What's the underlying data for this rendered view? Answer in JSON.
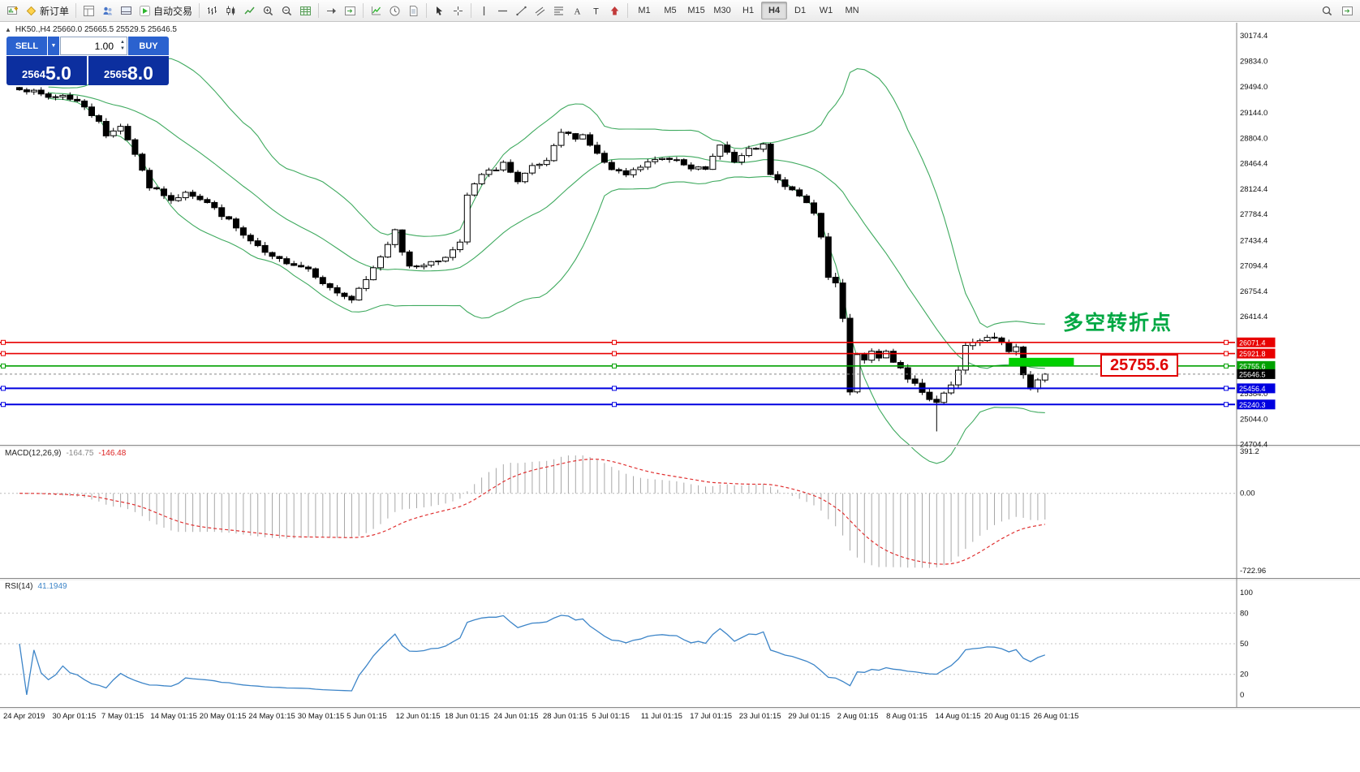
{
  "toolbar": {
    "items": [
      {
        "name": "new-chart-button",
        "icon": "new-chart"
      },
      {
        "name": "new-order-button",
        "icon": "new-order",
        "label": "新订单"
      },
      {
        "sep": true
      },
      {
        "name": "data-window-button",
        "icon": "data-window"
      },
      {
        "name": "navigator-button",
        "icon": "profiles"
      },
      {
        "name": "terminal-button",
        "icon": "terminal"
      },
      {
        "name": "autotrading-button",
        "icon": "autotrade-play",
        "label": "自动交易"
      },
      {
        "sep": true
      },
      {
        "name": "bar-chart-button",
        "icon": "bar-chart-type"
      },
      {
        "name": "candlestick-chart-button",
        "icon": "candle-chart-type"
      },
      {
        "name": "line-chart-button",
        "icon": "line-chart-type"
      },
      {
        "name": "zoom-in-button",
        "icon": "zoom-in"
      },
      {
        "name": "zoom-out-button",
        "icon": "zoom-out"
      },
      {
        "name": "tile-windows-button",
        "icon": "grid"
      },
      {
        "sep": true
      },
      {
        "name": "auto-scroll-button",
        "icon": "auto-scroll"
      },
      {
        "name": "chart-shift-button",
        "icon": "chart-shift"
      },
      {
        "sep": true
      },
      {
        "name": "indicators-button",
        "icon": "indicators"
      },
      {
        "name": "periods-button",
        "icon": "clock"
      },
      {
        "name": "templates-button",
        "icon": "templates"
      },
      {
        "sep": true
      },
      {
        "name": "cursor-button",
        "icon": "cursor-arrow"
      },
      {
        "name": "crosshair-button",
        "icon": "crosshair"
      },
      {
        "sep": true
      },
      {
        "name": "vertical-line-button",
        "icon": "vline"
      },
      {
        "name": "horizontal-line-button",
        "icon": "hline"
      },
      {
        "name": "trendline-button",
        "icon": "trendline"
      },
      {
        "name": "equidistant-channel-button",
        "icon": "channel"
      },
      {
        "name": "fibonacci-button",
        "icon": "fibonacci"
      },
      {
        "name": "text-button",
        "icon": "text"
      },
      {
        "name": "text-label-button",
        "icon": "label-flag"
      },
      {
        "name": "arrows-button",
        "icon": "arrows"
      },
      {
        "sep": true
      }
    ],
    "timeframes": [
      {
        "label": "M1"
      },
      {
        "label": "M5"
      },
      {
        "label": "M15"
      },
      {
        "label": "M30"
      },
      {
        "label": "H1"
      },
      {
        "label": "H4",
        "active": true
      },
      {
        "label": "D1"
      },
      {
        "label": "W1"
      },
      {
        "label": "MN"
      }
    ],
    "right_items": [
      {
        "name": "search-button",
        "icon": "search"
      },
      {
        "name": "quick-navigation-button",
        "icon": "chart-shift"
      }
    ]
  },
  "chart_header": {
    "collapse_icon": "▲",
    "text": "HK50.,H4  25660.0 25665.5 25529.5 25646.5"
  },
  "trade_panel": {
    "sell_label": "SELL",
    "buy_label": "BUY",
    "volume": "1.00",
    "sell_price": "25645.0",
    "sell_price_small": "2564",
    "sell_price_big": "5.0",
    "buy_price": "25658.0",
    "buy_price_small": "2565",
    "buy_price_big": "8.0"
  },
  "annotations": {
    "turning_point_text": "多空转折点",
    "price_callout": "25755.6"
  },
  "y_axis_labels": [
    "30174.4",
    "29834.0",
    "29494.0",
    "29144.0",
    "28804.0",
    "28464.4",
    "28124.4",
    "27784.4",
    "27434.4",
    "27094.4",
    "26754.4",
    "26414.4",
    "25384.0",
    "25044.0",
    "24704.4"
  ],
  "x_axis_labels": [
    "24 Apr 2019",
    "30 Apr 01:15",
    "7 May 01:15",
    "14 May 01:15",
    "20 May 01:15",
    "24 May 01:15",
    "30 May 01:15",
    "5 Jun 01:15",
    "12 Jun 01:15",
    "18 Jun 01:15",
    "24 Jun 01:15",
    "28 Jun 01:15",
    "5 Jul 01:15",
    "11 Jul 01:15",
    "17 Jul 01:15",
    "23 Jul 01:15",
    "29 Jul 01:15",
    "2 Aug 01:15",
    "8 Aug 01:15",
    "14 Aug 01:15",
    "20 Aug 01:15",
    "26 Aug 01:15"
  ],
  "levels": [
    {
      "name": "resistance-line-1",
      "price": 26071.4,
      "label": "26071.4",
      "color": "#e80000",
      "thickness": 1.6
    },
    {
      "name": "resistance-line-2",
      "price": 25921.8,
      "label": "25921.8",
      "color": "#e80000",
      "thickness": 1.6
    },
    {
      "name": "pivot-line",
      "price": 25755.6,
      "label": "25755.6",
      "color": "#00a000",
      "thickness": 1.6
    },
    {
      "name": "support-line-1",
      "price": 25456.4,
      "label": "25456.4",
      "color": "#0000e0",
      "thickness": 2
    },
    {
      "name": "support-line-2",
      "price": 25240.3,
      "label": "25240.3",
      "color": "#0000e0",
      "thickness": 2
    }
  ],
  "bid": {
    "price": 25646.5,
    "label": "25646.5",
    "color": "#000000"
  },
  "highlight": {
    "price": 25755.6,
    "from_index": 137,
    "to_index": 146,
    "color": "#00d000",
    "height": 10
  },
  "macd_panel": {
    "title": "MACD(12,26,9)",
    "main_value": "-164.75",
    "signal_value": "-146.48",
    "axis_labels": [
      "391.2",
      "0.00",
      "-722.96"
    ],
    "histogram_color": "#a8a8a8",
    "signal_color": "#e03030"
  },
  "rsi_panel": {
    "title": "RSI(14)",
    "value": "41.1949",
    "axis_labels": [
      "100",
      "80",
      "50",
      "20",
      "0"
    ],
    "levels": [
      80,
      50,
      20
    ],
    "line_color": "#3d85c8"
  },
  "chart_data": {
    "type": "candlestick",
    "symbol": "HK50",
    "timeframe": "H4",
    "title": "HK50.,H4",
    "ohlc_current": {
      "open": 25660.0,
      "high": 25665.5,
      "low": 25529.5,
      "close": 25646.5
    },
    "visible_price_range": [
      24704.4,
      30174.4
    ],
    "date_range": [
      "24 Apr 2019",
      "26 Aug 2019"
    ],
    "candle_count": 143,
    "close_anchors": [
      [
        0,
        29480
      ],
      [
        2,
        29420
      ],
      [
        4,
        29350
      ],
      [
        6,
        29380
      ],
      [
        8,
        29300
      ],
      [
        10,
        29120
      ],
      [
        11,
        29050
      ],
      [
        12,
        28820
      ],
      [
        13,
        28900
      ],
      [
        14,
        28980
      ],
      [
        16,
        28600
      ],
      [
        18,
        28150
      ],
      [
        20,
        28050
      ],
      [
        21,
        27950
      ],
      [
        23,
        28100
      ],
      [
        26,
        27940
      ],
      [
        29,
        27700
      ],
      [
        31,
        27500
      ],
      [
        33,
        27340
      ],
      [
        35,
        27200
      ],
      [
        37,
        27150
      ],
      [
        40,
        27060
      ],
      [
        43,
        26790
      ],
      [
        46,
        26640
      ],
      [
        48,
        26900
      ],
      [
        49,
        27060
      ],
      [
        51,
        27390
      ],
      [
        52,
        27600
      ],
      [
        53,
        27300
      ],
      [
        54,
        27070
      ],
      [
        56,
        27120
      ],
      [
        58,
        27170
      ],
      [
        60,
        27300
      ],
      [
        61,
        27390
      ],
      [
        62,
        28040
      ],
      [
        64,
        28310
      ],
      [
        66,
        28400
      ],
      [
        67,
        28480
      ],
      [
        69,
        28200
      ],
      [
        71,
        28420
      ],
      [
        73,
        28480
      ],
      [
        75,
        28880
      ],
      [
        77,
        28820
      ],
      [
        78,
        28850
      ],
      [
        80,
        28590
      ],
      [
        82,
        28370
      ],
      [
        84,
        28310
      ],
      [
        86,
        28420
      ],
      [
        87,
        28480
      ],
      [
        89,
        28530
      ],
      [
        91,
        28530
      ],
      [
        93,
        28420
      ],
      [
        95,
        28370
      ],
      [
        97,
        28740
      ],
      [
        99,
        28480
      ],
      [
        101,
        28640
      ],
      [
        103,
        28700
      ],
      [
        104,
        28310
      ],
      [
        106,
        28150
      ],
      [
        108,
        28040
      ],
      [
        109,
        27930
      ],
      [
        110,
        27800
      ],
      [
        111,
        27480
      ],
      [
        112,
        26950
      ],
      [
        113,
        26870
      ],
      [
        114,
        26400
      ],
      [
        115,
        25400
      ],
      [
        116,
        25900
      ],
      [
        117,
        25830
      ],
      [
        118,
        25950
      ],
      [
        119,
        25850
      ],
      [
        120,
        25950
      ],
      [
        121,
        25800
      ],
      [
        122,
        25720
      ],
      [
        123,
        25580
      ],
      [
        124,
        25530
      ],
      [
        125,
        25400
      ],
      [
        126,
        25300
      ],
      [
        127,
        25260
      ],
      [
        128,
        25400
      ],
      [
        129,
        25500
      ],
      [
        130,
        25700
      ],
      [
        131,
        26030
      ],
      [
        132,
        26080
      ],
      [
        133,
        26100
      ],
      [
        134,
        26140
      ],
      [
        135,
        26130
      ],
      [
        136,
        26080
      ],
      [
        137,
        25960
      ],
      [
        138,
        26020
      ],
      [
        139,
        25650
      ],
      [
        140,
        25460
      ],
      [
        141,
        25560
      ],
      [
        142,
        25646.5
      ]
    ],
    "spike_lows": [
      {
        "index": 127,
        "low": 24880
      }
    ],
    "bollinger": {
      "period": 20,
      "deviation": 2,
      "color": "#3faa5f"
    },
    "macd": {
      "fast": 12,
      "slow": 26,
      "signal": 9,
      "last_main": -164.75,
      "last_signal": -146.48
    },
    "rsi": {
      "period": 14,
      "last": 41.1949
    }
  }
}
